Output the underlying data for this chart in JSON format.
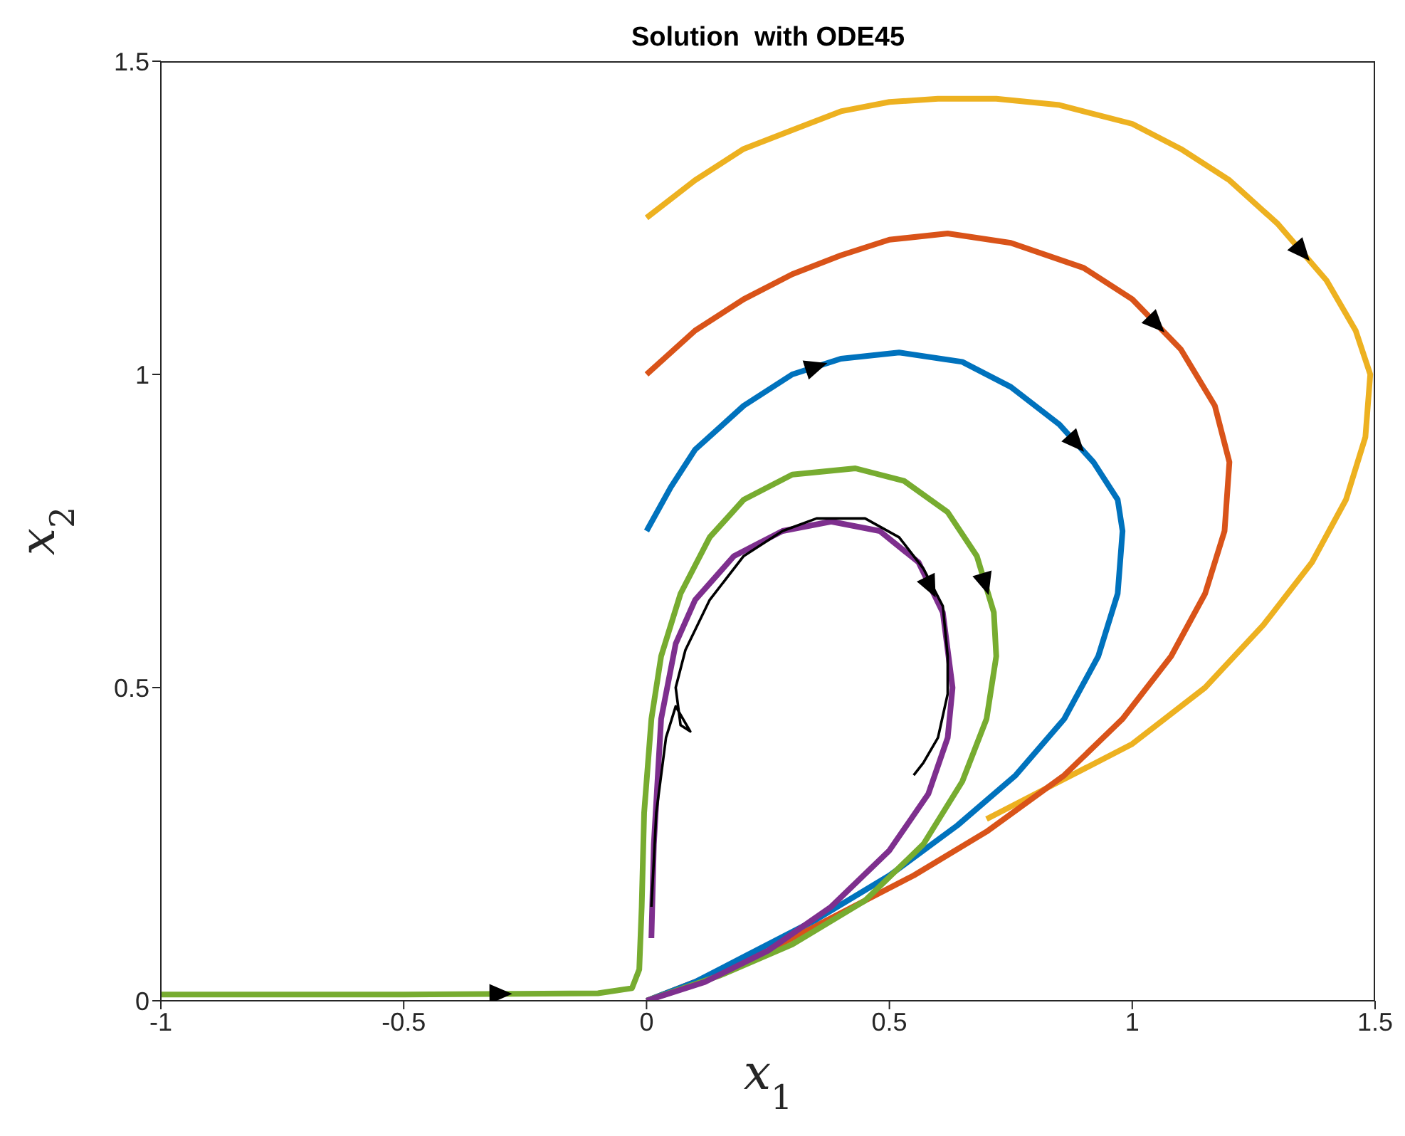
{
  "chart_data": {
    "type": "line",
    "title": "Solution  with ODE45",
    "xlabel": "x$_{1}$",
    "ylabel": "x$_{2}$",
    "xlim": [
      -1,
      1.5
    ],
    "ylim": [
      0,
      1.5
    ],
    "xticks": [
      -1,
      -0.5,
      0,
      0.5,
      1,
      1.5
    ],
    "yticks": [
      0,
      0.5,
      1,
      1.5
    ],
    "marker": "none",
    "line_style": "solid",
    "series": [
      {
        "color": "#edb120",
        "x": [
          0,
          0.1,
          0.2,
          0.3,
          0.4,
          0.5,
          0.6,
          0.72,
          0.85,
          1.0,
          1.1,
          1.2,
          1.3,
          1.4,
          1.46,
          1.49,
          1.48,
          1.44,
          1.37,
          1.27,
          1.15,
          1.0,
          0.85,
          0.7
        ],
        "values": [
          1.25,
          1.31,
          1.36,
          1.39,
          1.42,
          1.435,
          1.44,
          1.44,
          1.43,
          1.4,
          1.36,
          1.31,
          1.24,
          1.15,
          1.07,
          1.0,
          0.9,
          0.8,
          0.7,
          0.6,
          0.5,
          0.41,
          0.35,
          0.29
        ]
      },
      {
        "color": "#d95319",
        "x": [
          0,
          0.1,
          0.2,
          0.3,
          0.4,
          0.5,
          0.62,
          0.75,
          0.9,
          1.0,
          1.1,
          1.17,
          1.2,
          1.19,
          1.15,
          1.08,
          0.98,
          0.86,
          0.7,
          0.55,
          0.4,
          0.25,
          0.1,
          0
        ],
        "values": [
          1.0,
          1.07,
          1.12,
          1.16,
          1.19,
          1.215,
          1.225,
          1.21,
          1.17,
          1.12,
          1.04,
          0.95,
          0.86,
          0.75,
          0.65,
          0.55,
          0.45,
          0.36,
          0.27,
          0.2,
          0.14,
          0.08,
          0.03,
          0
        ]
      },
      {
        "color": "#0072bd",
        "x": [
          0,
          0.05,
          0.1,
          0.2,
          0.3,
          0.4,
          0.52,
          0.65,
          0.75,
          0.85,
          0.92,
          0.97,
          0.98,
          0.97,
          0.93,
          0.86,
          0.76,
          0.64,
          0.5,
          0.35,
          0.2,
          0.1,
          0
        ],
        "values": [
          0.75,
          0.82,
          0.88,
          0.95,
          1.0,
          1.025,
          1.035,
          1.02,
          0.98,
          0.92,
          0.86,
          0.8,
          0.75,
          0.65,
          0.55,
          0.45,
          0.36,
          0.28,
          0.2,
          0.13,
          0.07,
          0.03,
          0
        ]
      },
      {
        "color": "#77ac30",
        "x": [
          -1,
          -0.5,
          -0.1,
          -0.03,
          -0.015,
          -0.01,
          -0.005,
          0.01,
          0.03,
          0.07,
          0.13,
          0.2,
          0.3,
          0.43,
          0.53,
          0.62,
          0.68,
          0.715,
          0.72,
          0.7,
          0.65,
          0.57,
          0.45,
          0.3,
          0.15,
          0
        ],
        "values": [
          0.01,
          0.01,
          0.012,
          0.02,
          0.05,
          0.15,
          0.3,
          0.45,
          0.55,
          0.65,
          0.74,
          0.8,
          0.84,
          0.85,
          0.83,
          0.78,
          0.71,
          0.62,
          0.55,
          0.45,
          0.35,
          0.25,
          0.16,
          0.09,
          0.04,
          0
        ]
      },
      {
        "color": "#7e2f8e",
        "x": [
          0.01,
          0.015,
          0.03,
          0.06,
          0.1,
          0.18,
          0.28,
          0.38,
          0.48,
          0.56,
          0.61,
          0.63,
          0.62,
          0.58,
          0.5,
          0.38,
          0.25,
          0.12,
          0
        ],
        "values": [
          0.1,
          0.25,
          0.45,
          0.57,
          0.64,
          0.71,
          0.75,
          0.765,
          0.75,
          0.7,
          0.62,
          0.5,
          0.42,
          0.33,
          0.24,
          0.15,
          0.08,
          0.03,
          0
        ]
      },
      {
        "color": "#000000",
        "x": [
          0.01,
          0.02,
          0.04,
          0.06,
          0.09,
          0.07,
          0.06,
          0.08,
          0.13,
          0.2,
          0.28,
          0.35,
          0.45,
          0.52,
          0.57,
          0.61,
          0.62,
          0.62,
          0.6,
          0.57,
          0.55
        ],
        "values": [
          0.15,
          0.3,
          0.42,
          0.47,
          0.43,
          0.44,
          0.5,
          0.56,
          0.64,
          0.71,
          0.75,
          0.77,
          0.77,
          0.74,
          0.69,
          0.63,
          0.55,
          0.49,
          0.42,
          0.38,
          0.36
        ]
      }
    ]
  }
}
